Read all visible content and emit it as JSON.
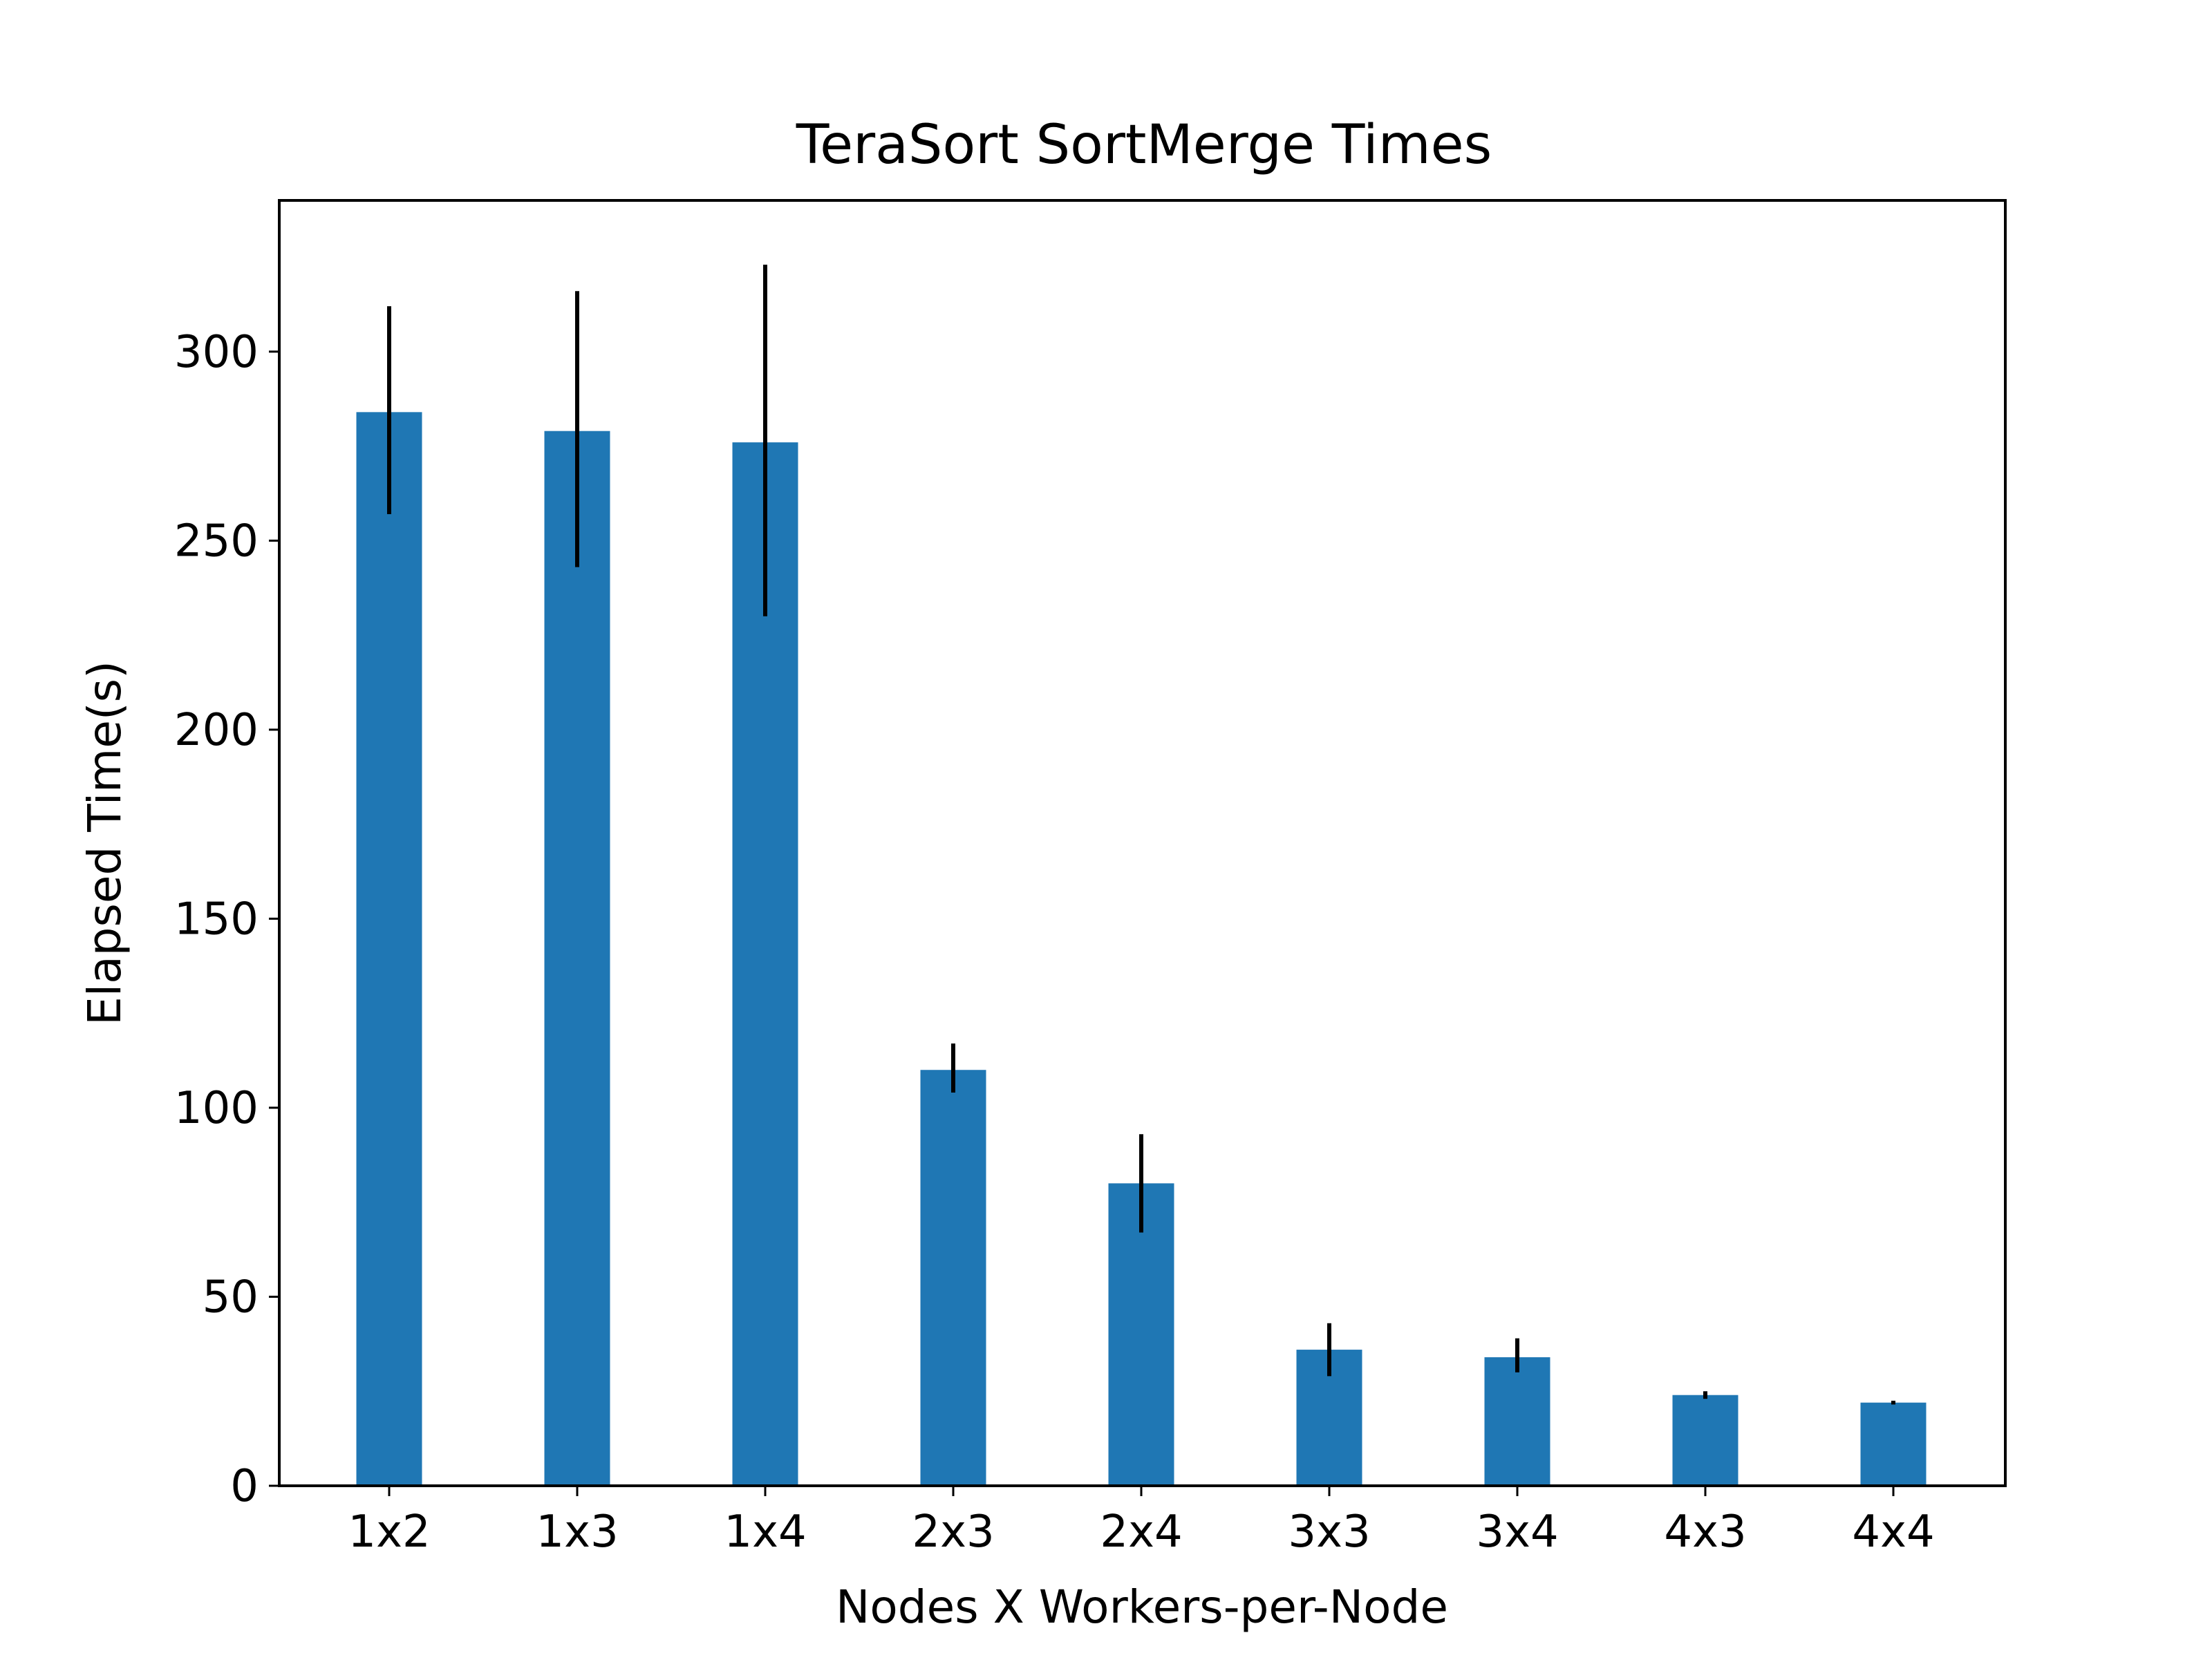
{
  "chart_data": {
    "type": "bar",
    "title": "TeraSort SortMerge Times",
    "xlabel": "Nodes X Workers-per-Node",
    "ylabel": "Elapsed Time(s)",
    "categories": [
      "1x2",
      "1x3",
      "1x4",
      "2x3",
      "2x4",
      "3x3",
      "3x4",
      "4x3",
      "4x4"
    ],
    "values": [
      284,
      279,
      276,
      110,
      80,
      36,
      34,
      24,
      22
    ],
    "error_low": [
      257,
      243,
      230,
      104,
      67,
      29,
      30,
      23,
      21.5
    ],
    "error_high": [
      312,
      316,
      323,
      117,
      93,
      43,
      39,
      25,
      22.5
    ],
    "ylim": [
      0,
      340
    ],
    "yticks": [
      0,
      50,
      100,
      150,
      200,
      250,
      300
    ],
    "grid": false,
    "legend": "none",
    "bar_color": "#1f77b4",
    "error_color": "#000000"
  }
}
